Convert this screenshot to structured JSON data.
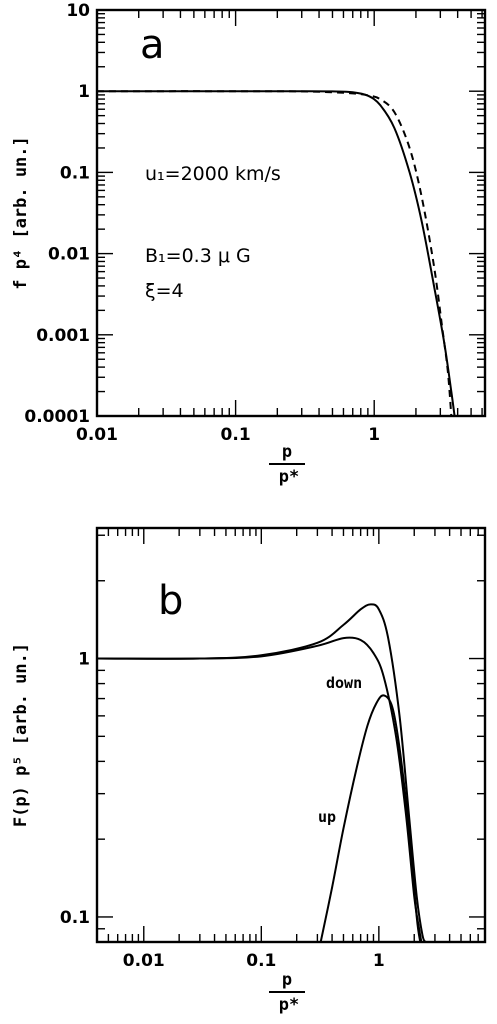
{
  "chart_data": [
    {
      "type": "line",
      "panel_label": "a",
      "xscale": "log",
      "yscale": "log",
      "xlim": [
        0.01,
        6.3
      ],
      "ylim": [
        0.0001,
        10
      ],
      "xticks": [
        {
          "v": 0.01,
          "label": "0.01"
        },
        {
          "v": 0.1,
          "label": "0.1"
        },
        {
          "v": 1,
          "label": "1"
        }
      ],
      "yticks": [
        {
          "v": 0.0001,
          "label": "0.0001"
        },
        {
          "v": 0.001,
          "label": "0.001"
        },
        {
          "v": 0.01,
          "label": "0.01"
        },
        {
          "v": 0.1,
          "label": "0.1"
        },
        {
          "v": 1,
          "label": "1"
        },
        {
          "v": 10,
          "label": "10"
        }
      ],
      "xlabel_num": "p",
      "xlabel_den": "p*",
      "ylabel": "f p⁴ [arb. un.]",
      "annotations": [
        "u₁=2000 km/s",
        "B₁=0.3 μ G",
        "ξ=4"
      ],
      "series": [
        {
          "style": "solid",
          "x": [
            0.01,
            0.1,
            0.3,
            0.5,
            0.7,
            0.9,
            1.1,
            1.4,
            1.8,
            2.2,
            2.7,
            3.2,
            3.6,
            3.8
          ],
          "y": [
            1.0,
            1.0,
            1.0,
            0.995,
            0.97,
            0.88,
            0.68,
            0.35,
            0.1,
            0.025,
            0.004,
            0.0008,
            0.0002,
            0.0001
          ]
        },
        {
          "style": "dashed",
          "x": [
            0.01,
            0.1,
            0.3,
            0.5,
            0.7,
            0.9,
            1.1,
            1.4,
            1.8,
            2.2,
            2.7,
            3.1,
            3.4,
            3.6
          ],
          "y": [
            1.0,
            1.0,
            0.995,
            0.97,
            0.94,
            0.89,
            0.8,
            0.55,
            0.2,
            0.05,
            0.007,
            0.0012,
            0.00035,
            0.0001
          ]
        }
      ]
    },
    {
      "type": "line",
      "panel_label": "b",
      "xscale": "log",
      "yscale": "log",
      "xlim": [
        0.004,
        8
      ],
      "ylim": [
        0.08,
        3.2
      ],
      "xticks": [
        {
          "v": 0.01,
          "label": "0.01"
        },
        {
          "v": 0.1,
          "label": "0.1"
        },
        {
          "v": 1,
          "label": "1"
        }
      ],
      "yticks": [
        {
          "v": 0.1,
          "label": "0.1"
        },
        {
          "v": 1,
          "label": "1"
        }
      ],
      "xlabel_num": "p",
      "xlabel_den": "p*",
      "ylabel": "F(p) p⁵ [arb. un.]",
      "series": [
        {
          "style": "solid",
          "x": [
            0.004,
            0.03,
            0.1,
            0.3,
            0.5,
            0.7,
            0.85,
            1.0,
            1.2,
            1.5,
            1.8,
            2.1,
            2.35,
            2.5
          ],
          "y": [
            1.0,
            1.0,
            1.03,
            1.15,
            1.35,
            1.55,
            1.62,
            1.55,
            1.2,
            0.6,
            0.25,
            0.12,
            0.085,
            0.08
          ]
        },
        {
          "name": "down",
          "style": "solid",
          "x": [
            0.004,
            0.03,
            0.1,
            0.3,
            0.5,
            0.7,
            0.9,
            1.1,
            1.4,
            1.7,
            2.0,
            2.2,
            2.3
          ],
          "y": [
            1.0,
            1.0,
            1.02,
            1.12,
            1.2,
            1.18,
            1.05,
            0.85,
            0.5,
            0.25,
            0.12,
            0.09,
            0.08
          ]
        },
        {
          "name": "up",
          "style": "solid",
          "x": [
            0.32,
            0.4,
            0.5,
            0.65,
            0.8,
            0.95,
            1.1,
            1.3,
            1.5,
            1.8,
            2.1,
            2.25
          ],
          "y": [
            0.08,
            0.13,
            0.22,
            0.38,
            0.55,
            0.67,
            0.72,
            0.65,
            0.45,
            0.22,
            0.1,
            0.08
          ]
        }
      ]
    }
  ]
}
